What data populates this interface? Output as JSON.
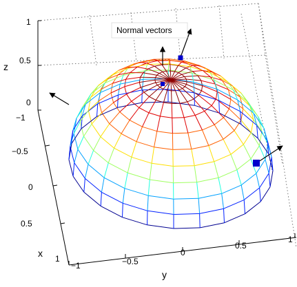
{
  "axes": {
    "z": {
      "label": "z",
      "ticks": [
        "0",
        "0.5",
        "1"
      ]
    },
    "x": {
      "label": "x",
      "ticks": [
        "−1",
        "−0.5",
        "0",
        "0.5",
        "1"
      ]
    },
    "y": {
      "label": "y",
      "ticks": [
        "−1",
        "−0.5",
        "0",
        "0.5",
        "1"
      ]
    }
  },
  "annotation": {
    "text": "Normal vectors"
  },
  "colors": {
    "surface": [
      "#00008f",
      "#0020ff",
      "#00a0ff",
      "#20ffdf",
      "#9fff60",
      "#ffdf00",
      "#ff6000",
      "#df0000",
      "#8f0000"
    ],
    "arrow": "#000000",
    "marker": "#0000cc",
    "box": "#444444"
  },
  "icons": {
    "arrow": "arrow-icon",
    "marker": "square-marker-icon"
  }
}
